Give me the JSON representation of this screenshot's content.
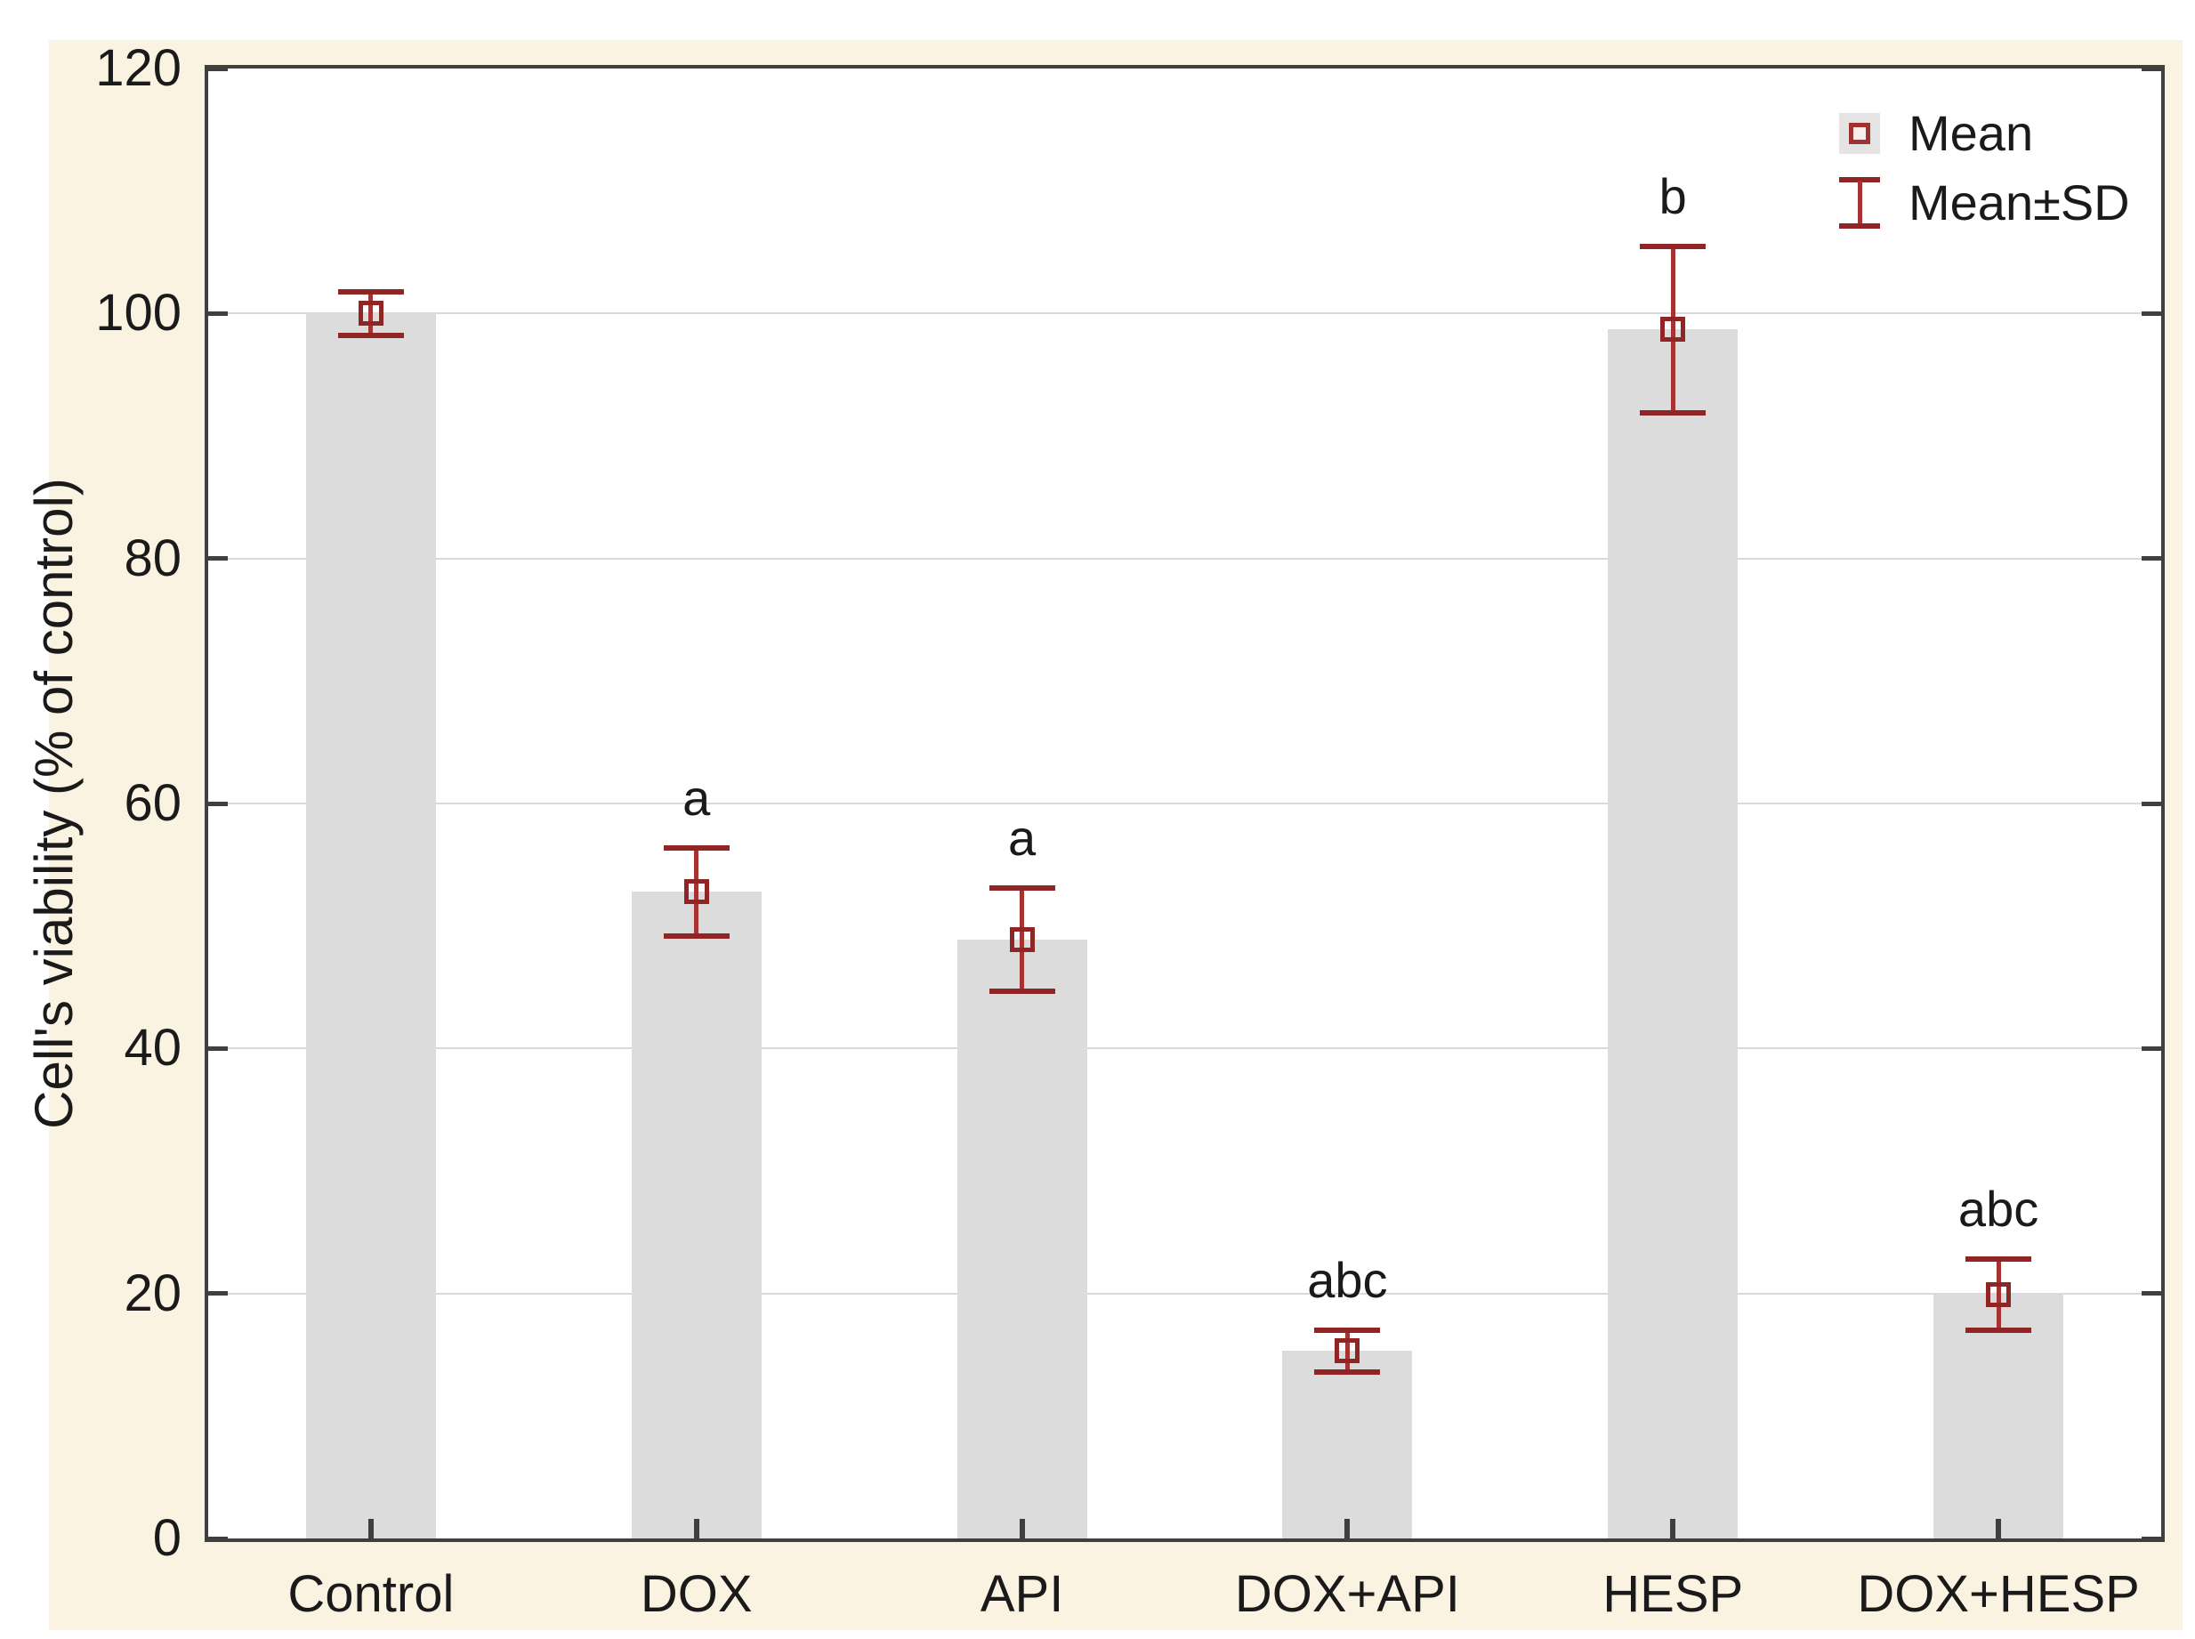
{
  "chart_data": {
    "type": "bar",
    "title": "",
    "categories": [
      "Control",
      "DOX",
      "API",
      "DOX+API",
      "HESP",
      "DOX+HESP"
    ],
    "series": [
      {
        "name": "Mean",
        "values": [
          100,
          52.8,
          48.9,
          15.3,
          98.7,
          19.9
        ]
      },
      {
        "name": "SD",
        "values": [
          1.8,
          3.6,
          4.2,
          1.7,
          6.8,
          2.9
        ]
      }
    ],
    "annotations": [
      "",
      "a",
      "a",
      "abc",
      "b",
      "abc"
    ],
    "xlabel": "",
    "ylabel": "Cell's viability (% of control)",
    "ylim": [
      0,
      120
    ],
    "yticks": [
      0,
      20,
      40,
      60,
      80,
      100,
      120
    ],
    "grid": true,
    "legend": {
      "position": "top-right",
      "entries": [
        {
          "label": "Mean",
          "marker": "open-square"
        },
        {
          "label": "Mean±SD",
          "marker": "error-bar"
        }
      ]
    },
    "colors": {
      "background": "#faf3e2",
      "plot_background": "#ffffff",
      "frame": "#3f3f3f",
      "grid": "#dadada",
      "bar_fill": "#dcdcdc",
      "error_bar": "#a63232",
      "error_bar_caps": "#8f2525",
      "marker_edge": "#8f2525",
      "text": "#1a1a1a"
    }
  }
}
